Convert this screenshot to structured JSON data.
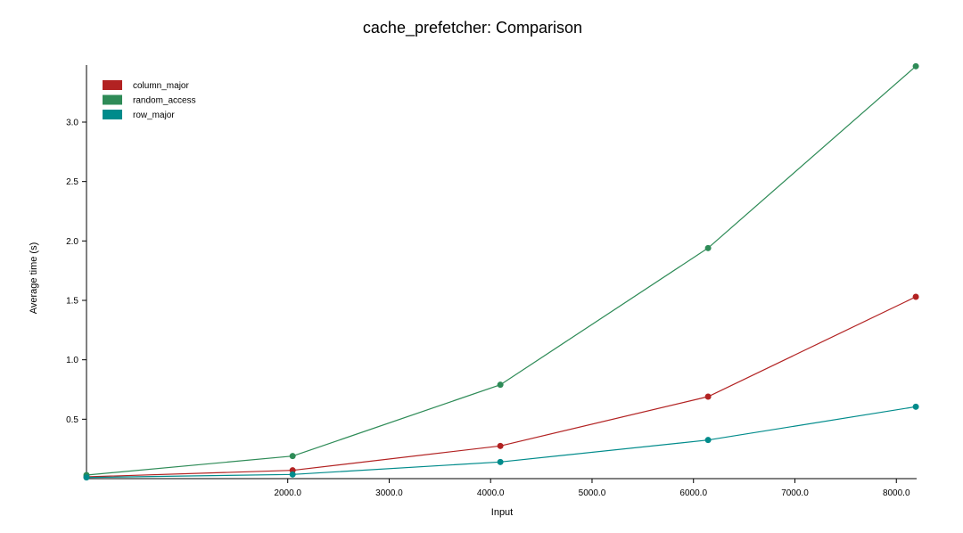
{
  "chart_data": {
    "type": "line",
    "title": "cache_prefetcher: Comparison",
    "xlabel": "Input",
    "ylabel": "Average time (s)",
    "x": [
      16,
      2048,
      4096,
      6144,
      8192
    ],
    "xlim": [
      16,
      8200
    ],
    "ylim": [
      0.0,
      3.48
    ],
    "xticks": [
      2000,
      3000,
      4000,
      5000,
      6000,
      7000,
      8000
    ],
    "xtick_labels": [
      "2000.0",
      "3000.0",
      "4000.0",
      "5000.0",
      "6000.0",
      "7000.0",
      "8000.0"
    ],
    "yticks": [
      0.5,
      1.0,
      1.5,
      2.0,
      2.5,
      3.0
    ],
    "ytick_labels": [
      "0.5",
      "1.0",
      "1.5",
      "2.0",
      "2.5",
      "3.0"
    ],
    "grid": false,
    "legend_position": "top-left",
    "series": [
      {
        "name": "column_major",
        "color": "#b22222",
        "values": [
          0.015,
          0.07,
          0.275,
          0.69,
          1.53
        ]
      },
      {
        "name": "random_access",
        "color": "#2e8b57",
        "values": [
          0.03,
          0.19,
          0.79,
          1.94,
          3.47
        ]
      },
      {
        "name": "row_major",
        "color": "#008b8b",
        "values": [
          0.01,
          0.035,
          0.14,
          0.325,
          0.605
        ]
      }
    ]
  }
}
